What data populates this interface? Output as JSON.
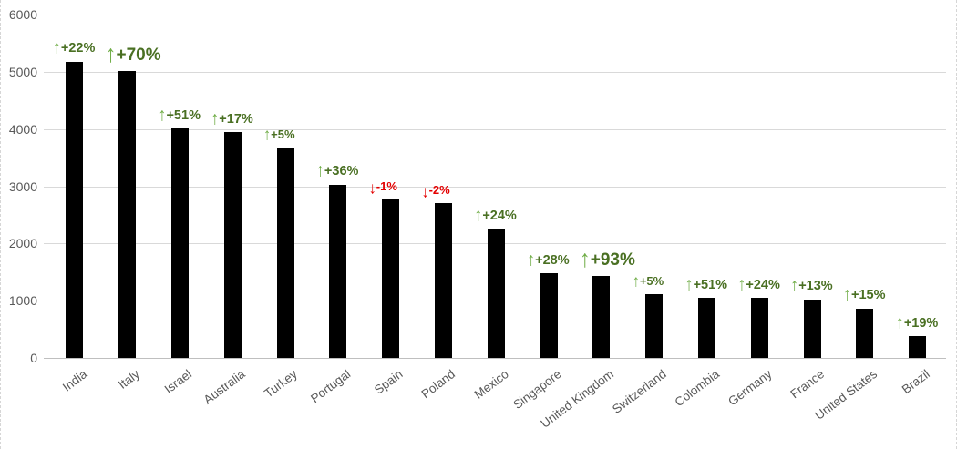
{
  "chart_data": {
    "type": "bar",
    "title": "",
    "xlabel": "",
    "ylabel": "",
    "categories": [
      "India",
      "Italy",
      "Israel",
      "Australia",
      "Turkey",
      "Portugal",
      "Spain",
      "Poland",
      "Mexico",
      "Singapore",
      "United Kingdom",
      "Switzerland",
      "Colombia",
      "Germany",
      "France",
      "United States",
      "Brazil"
    ],
    "values": [
      5180,
      5020,
      4010,
      3940,
      3670,
      3030,
      2770,
      2700,
      2260,
      1480,
      1430,
      1110,
      1050,
      1050,
      1020,
      860,
      380
    ],
    "annotations": [
      {
        "label": "+22%",
        "direction": "up",
        "emphasis": "normal"
      },
      {
        "label": "+70%",
        "direction": "up",
        "emphasis": "large"
      },
      {
        "label": "+51%",
        "direction": "up",
        "emphasis": "normal"
      },
      {
        "label": "+17%",
        "direction": "up",
        "emphasis": "normal"
      },
      {
        "label": "+5%",
        "direction": "up",
        "emphasis": "small"
      },
      {
        "label": "+36%",
        "direction": "up",
        "emphasis": "normal"
      },
      {
        "label": "-1%",
        "direction": "down",
        "emphasis": "small"
      },
      {
        "label": "-2%",
        "direction": "down",
        "emphasis": "small"
      },
      {
        "label": "+24%",
        "direction": "up",
        "emphasis": "normal"
      },
      {
        "label": "+28%",
        "direction": "up",
        "emphasis": "normal"
      },
      {
        "label": "+93%",
        "direction": "up",
        "emphasis": "large"
      },
      {
        "label": "+5%",
        "direction": "up",
        "emphasis": "small"
      },
      {
        "label": "+51%",
        "direction": "up",
        "emphasis": "normal"
      },
      {
        "label": "+24%",
        "direction": "up",
        "emphasis": "normal"
      },
      {
        "label": "+13%",
        "direction": "up",
        "emphasis": "normal"
      },
      {
        "label": "+15%",
        "direction": "up",
        "emphasis": "normal"
      },
      {
        "label": "+19%",
        "direction": "up",
        "emphasis": "normal"
      }
    ],
    "ylim": [
      0,
      6000
    ],
    "yticks": [
      0,
      1000,
      2000,
      3000,
      4000,
      5000,
      6000
    ],
    "grid": true,
    "legend": false,
    "colors": {
      "bar": "#000000",
      "up_arrow": "#70AD47",
      "up_text": "#4A7023",
      "down_arrow": "#E30000",
      "down_text": "#E30000",
      "gridline": "#D9D9D9",
      "axis_line": "#BFBFBF",
      "axis_label": "#595959",
      "background": "#FFFFFF"
    },
    "arrow_glyphs": {
      "up": "↑",
      "down": "↓"
    }
  }
}
